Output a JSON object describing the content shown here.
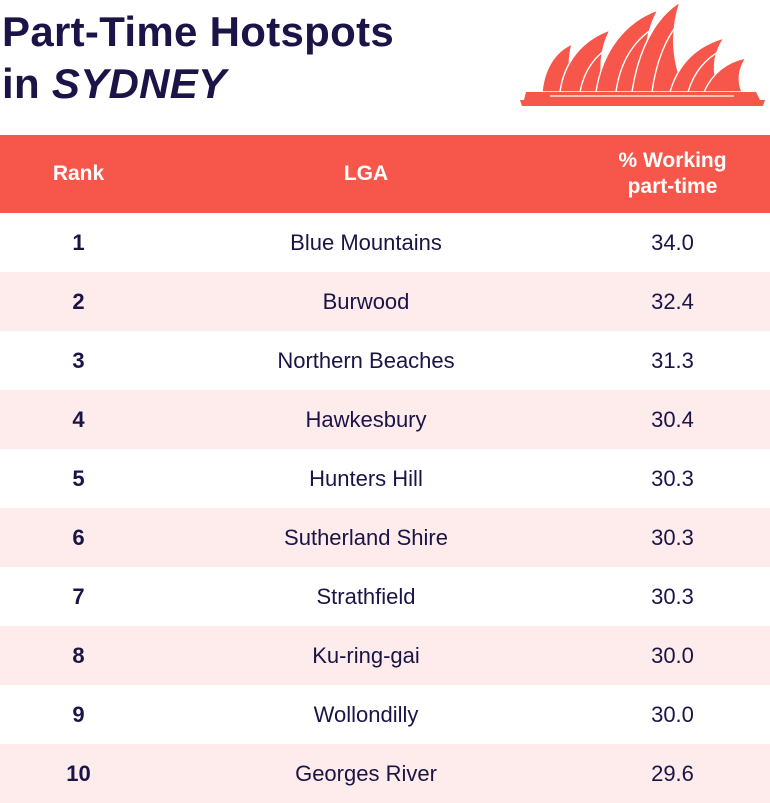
{
  "header": {
    "title_line1": "Part-Time Hotspots",
    "title_line2_prefix": "in ",
    "title_line2_city": "SYDNEY",
    "logo_icon": "opera-house-icon",
    "accent_color": "#f7564b"
  },
  "chart_data": {
    "type": "table",
    "columns": [
      "Rank",
      "LGA",
      "% Working part-time"
    ],
    "header_pct_line1": "% Working",
    "header_pct_line2": "part-time",
    "rows": [
      {
        "rank": "1",
        "lga": "Blue Mountains",
        "pct": "34.0"
      },
      {
        "rank": "2",
        "lga": "Burwood",
        "pct": "32.4"
      },
      {
        "rank": "3",
        "lga": "Northern Beaches",
        "pct": "31.3"
      },
      {
        "rank": "4",
        "lga": "Hawkesbury",
        "pct": "30.4"
      },
      {
        "rank": "5",
        "lga": "Hunters Hill",
        "pct": "30.3"
      },
      {
        "rank": "6",
        "lga": "Sutherland Shire",
        "pct": "30.3"
      },
      {
        "rank": "7",
        "lga": "Strathfield",
        "pct": "30.3"
      },
      {
        "rank": "8",
        "lga": "Ku-ring-gai",
        "pct": "30.0"
      },
      {
        "rank": "9",
        "lga": "Wollondilly",
        "pct": "30.0"
      },
      {
        "rank": "10",
        "lga": "Georges River",
        "pct": "29.6"
      }
    ],
    "header_color": "#f7564b",
    "alt_row_color": "#fdeceb"
  }
}
